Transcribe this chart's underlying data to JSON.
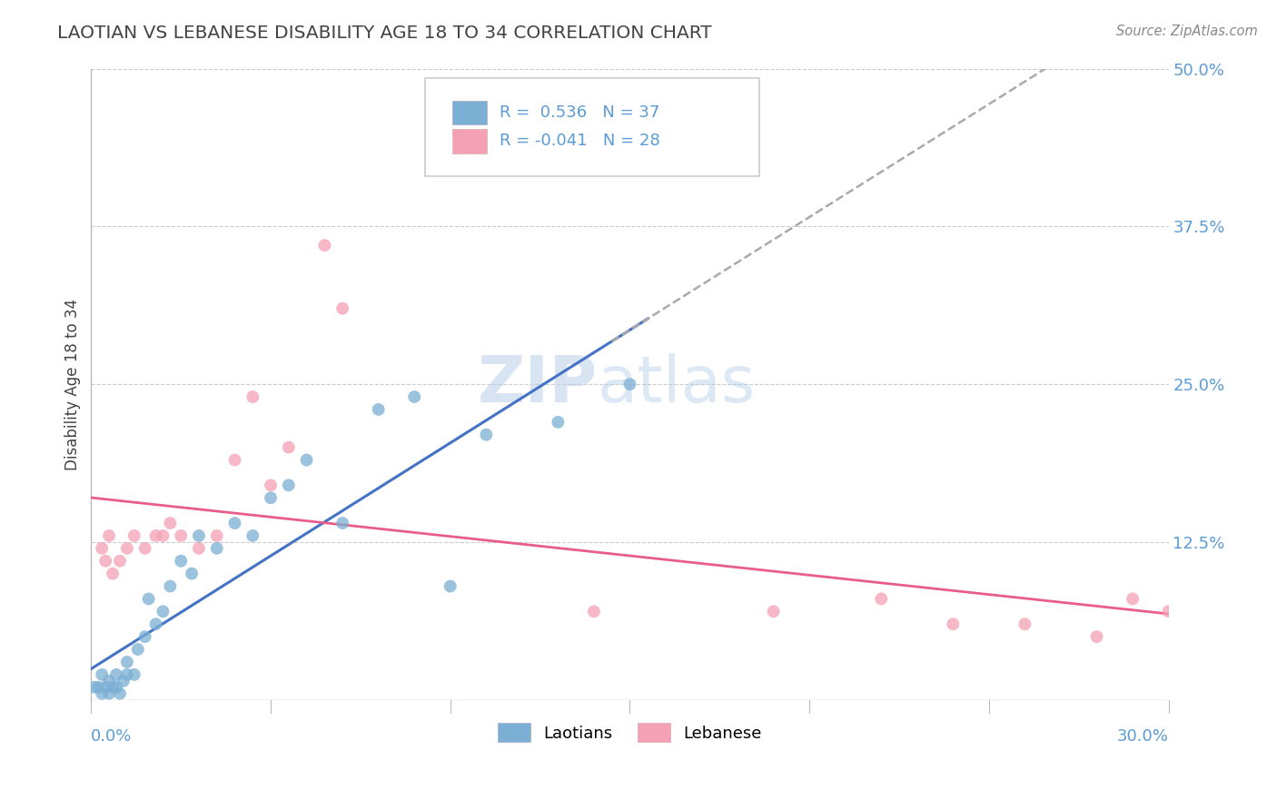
{
  "title": "LAOTIAN VS LEBANESE DISABILITY AGE 18 TO 34 CORRELATION CHART",
  "source_text": "Source: ZipAtlas.com",
  "ylabel": "Disability Age 18 to 34",
  "xlim": [
    0.0,
    0.3
  ],
  "ylim": [
    0.0,
    0.5
  ],
  "laotian_color": "#7bafd4",
  "lebanese_color": "#f4a0b5",
  "trend_lao_color": "#4472C4",
  "trend_leb_color": "#E85D8A",
  "dash_color": "#aaaaaa",
  "watermark": "ZIPatlas",
  "background_color": "#ffffff",
  "laotian_x": [
    0.001,
    0.002,
    0.003,
    0.003,
    0.004,
    0.005,
    0.005,
    0.006,
    0.007,
    0.007,
    0.008,
    0.009,
    0.01,
    0.01,
    0.012,
    0.013,
    0.015,
    0.016,
    0.018,
    0.02,
    0.022,
    0.025,
    0.028,
    0.03,
    0.035,
    0.04,
    0.045,
    0.05,
    0.055,
    0.06,
    0.07,
    0.08,
    0.09,
    0.1,
    0.11,
    0.13,
    0.15
  ],
  "laotian_y": [
    0.01,
    0.01,
    0.005,
    0.02,
    0.01,
    0.005,
    0.015,
    0.01,
    0.01,
    0.02,
    0.005,
    0.015,
    0.02,
    0.03,
    0.02,
    0.04,
    0.05,
    0.08,
    0.06,
    0.07,
    0.09,
    0.11,
    0.1,
    0.13,
    0.12,
    0.14,
    0.13,
    0.16,
    0.17,
    0.19,
    0.14,
    0.23,
    0.24,
    0.09,
    0.21,
    0.22,
    0.25
  ],
  "lebanese_x": [
    0.003,
    0.004,
    0.005,
    0.006,
    0.008,
    0.01,
    0.012,
    0.015,
    0.018,
    0.02,
    0.022,
    0.025,
    0.03,
    0.035,
    0.04,
    0.045,
    0.05,
    0.055,
    0.065,
    0.07,
    0.14,
    0.19,
    0.22,
    0.24,
    0.26,
    0.28,
    0.29,
    0.3
  ],
  "lebanese_y": [
    0.12,
    0.11,
    0.13,
    0.1,
    0.11,
    0.12,
    0.13,
    0.12,
    0.13,
    0.13,
    0.14,
    0.13,
    0.12,
    0.13,
    0.19,
    0.24,
    0.17,
    0.2,
    0.36,
    0.31,
    0.07,
    0.07,
    0.08,
    0.06,
    0.06,
    0.05,
    0.08,
    0.07
  ],
  "grid_color": "#cccccc",
  "title_color": "#444444",
  "tick_label_color": "#5b9bd5"
}
